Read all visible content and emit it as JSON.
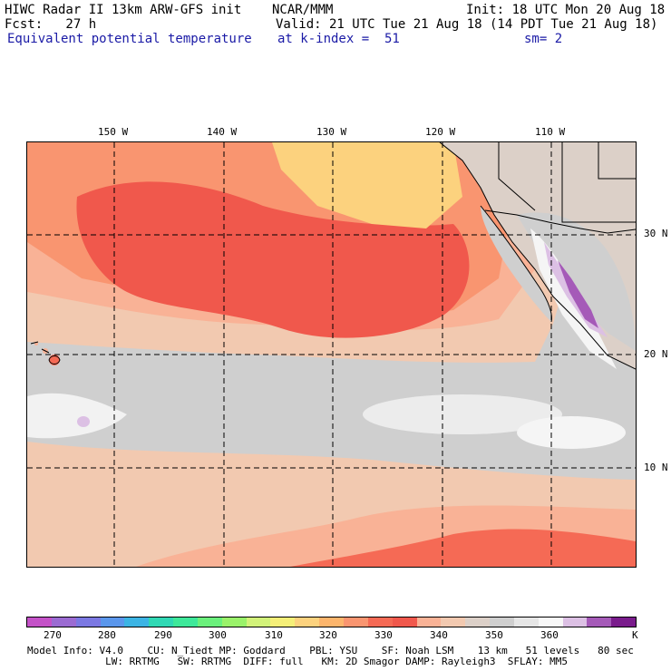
{
  "header": {
    "line1_left": "HIWC Radar II 13km ARW-GFS init",
    "line1_mid": "NCAR/MMM",
    "line1_right": "Init: 18 UTC Mon 20 Aug 18",
    "line2_left": "Fcst:   27 h",
    "line2_right": "Valid: 21 UTC Tue 21 Aug 18 (14 PDT Tue 21 Aug 18)",
    "line3_left": "Equivalent potential temperature",
    "line3_mid": "at k-index =  51",
    "line3_right": "sm= 2"
  },
  "map": {
    "lon_labels": [
      "150 W",
      "140 W",
      "130 W",
      "120 W",
      "110 W"
    ],
    "lat_labels": [
      "30 N",
      "20 N",
      "10 N"
    ],
    "field_colors": {
      "deep_red": "#f0584c",
      "red": "#f56a55",
      "orange": "#f99570",
      "salmon": "#f9b296",
      "peach": "#f2c9b0",
      "yellow": "#fcd27e",
      "gray": "#cfcfcf",
      "light_gray": "#e6e6e6",
      "white": "#f5f5f5",
      "lilac": "#dcc0e4",
      "purple": "#a55ab8"
    }
  },
  "colorbar": {
    "colors": [
      "#c452c8",
      "#9b6bd2",
      "#7b78e2",
      "#5b97ec",
      "#3cb4e4",
      "#30d8b4",
      "#3ee89a",
      "#6bf07c",
      "#9af26a",
      "#d2f27a",
      "#f5ef78",
      "#fcd27e",
      "#fcb56c",
      "#f99570",
      "#f56a55",
      "#f0584c",
      "#f9b296",
      "#f2c9b0",
      "#dcd0c8",
      "#cfcfcf",
      "#e6e6e6",
      "#f7f7f7",
      "#dcc0e4",
      "#a55ab8",
      "#7a1c8c"
    ],
    "labels": [
      "270",
      "280",
      "290",
      "300",
      "310",
      "320",
      "330",
      "340",
      "350",
      "360"
    ],
    "unit": "K"
  },
  "footer": {
    "line1": "Model Info: V4.0    CU: N_Tiedt MP: Goddard    PBL: YSU    SF: Noah LSM    13 km   51 levels   80 sec",
    "line2": "             LW: RRTMG   SW: RRTMG  DIFF: full   KM: 2D Smagor DAMP: Rayleigh3  SFLAY: MM5"
  }
}
